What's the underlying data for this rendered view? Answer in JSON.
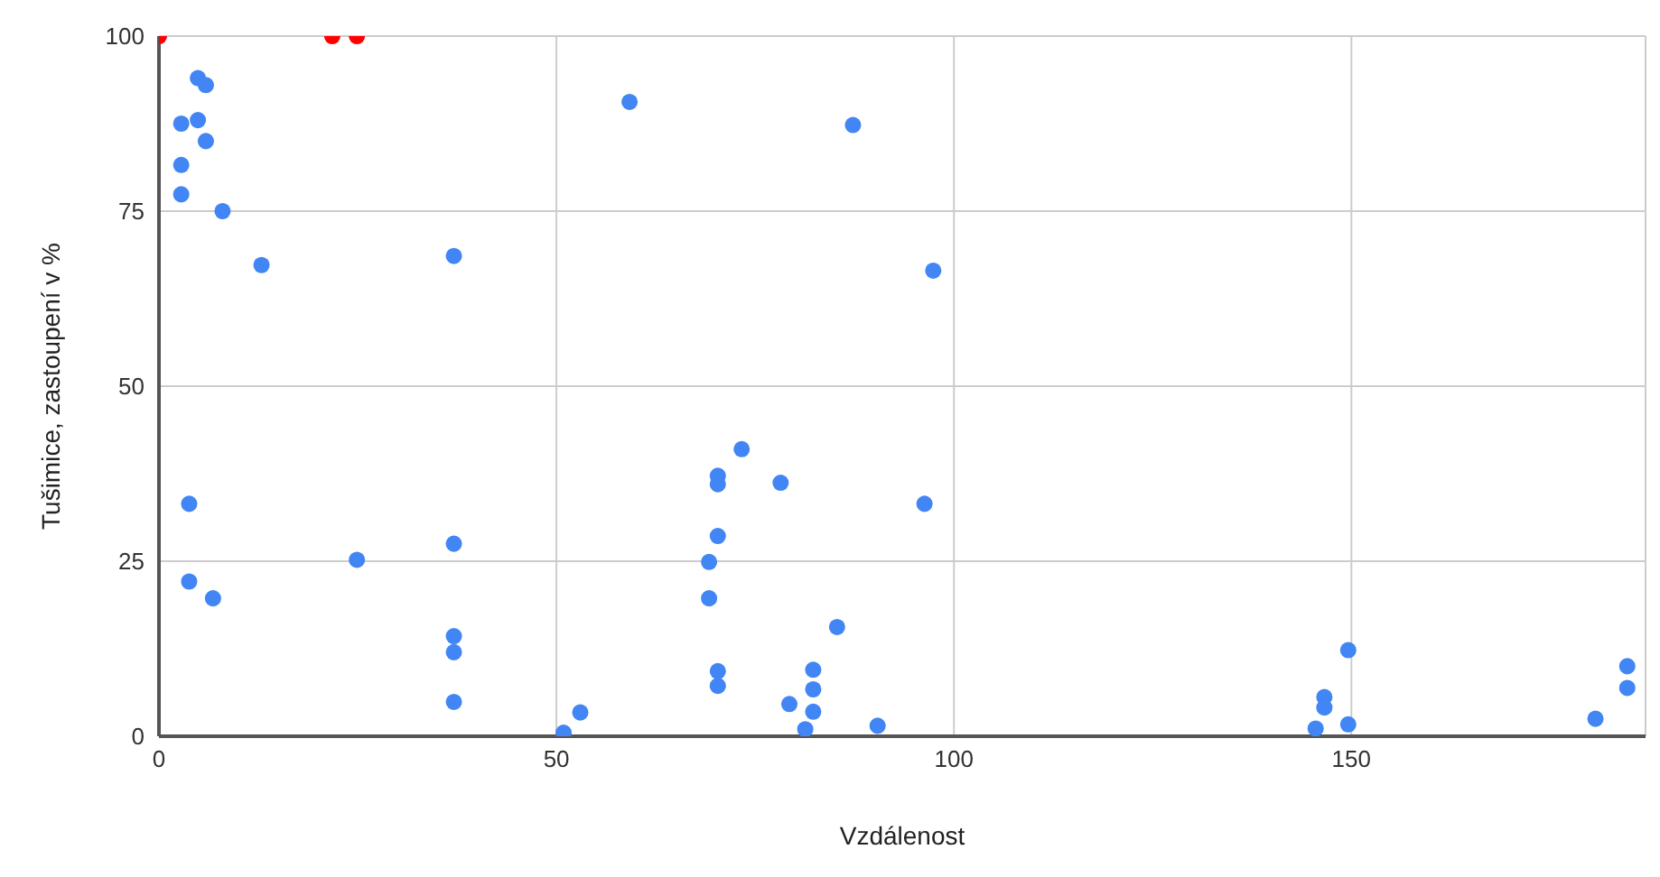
{
  "chart_data": {
    "type": "scatter",
    "xlabel": "Vzdálenost",
    "ylabel": "Tušimice, zastoupení v %",
    "xlim": [
      0,
      187
    ],
    "xticks": [
      0,
      50,
      100,
      150
    ],
    "ylim": [
      0,
      100
    ],
    "yticks": [
      0,
      25,
      50,
      75,
      100
    ],
    "grid": true,
    "marker": "circle",
    "series": [
      {
        "color": "#4285f4",
        "x": [
          4.9,
          5.9,
          4.9,
          2.8,
          5.9,
          2.8,
          2.8,
          8,
          12.9,
          37.1,
          59.2,
          87.3,
          97.4,
          3.8,
          3.8,
          6.8,
          24.9,
          37.1,
          37.1,
          37.1,
          37.1,
          50.9,
          53,
          73.3,
          70.3,
          70.3,
          78.2,
          96.3,
          70.3,
          69.2,
          69.2,
          85.3,
          70.3,
          70.3,
          82.3,
          82.3,
          82.3,
          79.3,
          81.3,
          90.4,
          149.6,
          146.6,
          146.6,
          145.5,
          149.6,
          180.7,
          184.7,
          184.7
        ],
        "values": [
          94,
          93,
          88,
          87.5,
          85,
          81.6,
          77.4,
          75,
          67.3,
          68.6,
          90.6,
          87.3,
          66.5,
          33.2,
          22.1,
          19.7,
          25.2,
          27.5,
          14.3,
          12,
          4.9,
          0.5,
          3.4,
          41,
          37.2,
          36,
          36.2,
          33.2,
          28.6,
          24.9,
          19.7,
          15.6,
          9.3,
          7.2,
          9.5,
          6.7,
          3.5,
          4.6,
          1,
          1.5,
          12.3,
          5.6,
          4.1,
          1.1,
          1.7,
          2.5,
          10,
          6.9
        ]
      },
      {
        "color": "#ff0000",
        "x": [
          0,
          21.8,
          24.9
        ],
        "values": [
          100,
          100,
          100
        ]
      }
    ]
  }
}
